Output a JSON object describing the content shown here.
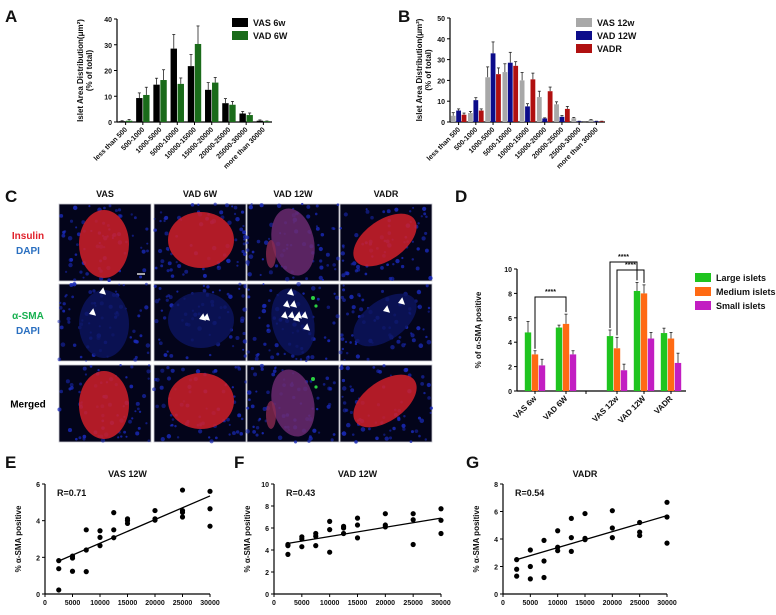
{
  "panel_letters": [
    "A",
    "B",
    "C",
    "D",
    "E",
    "F",
    "G"
  ],
  "chart_data": [
    {
      "id": "A",
      "type": "bar",
      "ylabel": "Islet Area Distribution(μm²)",
      "ylabel2": "(% of total)",
      "ylim": [
        0,
        40
      ],
      "yticks": [
        0,
        10,
        20,
        30,
        40
      ],
      "categories": [
        "less than 500",
        "500-1000",
        "1000-5000",
        "5000-10000",
        "10000-15000",
        "15000-20000",
        "20000-25000",
        "25000-30000",
        "more than 30000"
      ],
      "series": [
        {
          "name": "VAS 6w",
          "color": "#000000",
          "values": [
            0.3,
            9.3,
            14.5,
            28.5,
            21.7,
            12.5,
            7.3,
            3.3,
            0.5
          ],
          "errors": [
            0.2,
            2.0,
            2.5,
            5.5,
            4.5,
            2.8,
            1.8,
            0.8,
            0.3
          ]
        },
        {
          "name": "VAD 6W",
          "color": "#1a6b1a",
          "values": [
            0.5,
            10.5,
            16.3,
            14.8,
            30.3,
            15.3,
            6.7,
            2.7,
            0.3
          ],
          "errors": [
            0.5,
            3.0,
            4.0,
            2.3,
            7.0,
            2.0,
            1.3,
            0.8,
            0.1
          ]
        }
      ],
      "legend": "top-right"
    },
    {
      "id": "B",
      "type": "bar",
      "ylabel": "Islet Area Distribution(μm²)",
      "ylabel2": "(% of total)",
      "ylim": [
        0,
        50
      ],
      "yticks": [
        0,
        10,
        20,
        30,
        40,
        50
      ],
      "categories": [
        "less than 500",
        "500-1000",
        "1000-5000",
        "5000-10000",
        "10000-15000",
        "15000-20000",
        "20000-25000",
        "25000-30000",
        "more than 30000"
      ],
      "series": [
        {
          "name": "VAS 12w",
          "color": "#a8a8a8",
          "values": [
            3.0,
            4.3,
            21.5,
            24.0,
            20.0,
            12.0,
            8.5,
            1.8,
            1.0
          ],
          "errors": [
            1.5,
            0.8,
            5.0,
            4.0,
            3.8,
            2.8,
            1.2,
            0.4,
            0.2
          ]
        },
        {
          "name": "VAD 12W",
          "color": "#0c0c8a",
          "values": [
            5.5,
            10.5,
            33.0,
            28.5,
            7.5,
            1.7,
            2.5,
            0.3,
            0.3
          ],
          "errors": [
            0.8,
            1.2,
            5.5,
            5.0,
            1.3,
            0.3,
            0.6,
            0.1,
            0.1
          ]
        },
        {
          "name": "VADR",
          "color": "#b01010",
          "values": [
            3.5,
            5.5,
            23.0,
            27.0,
            20.5,
            14.8,
            6.3,
            0.0,
            0.3
          ],
          "errors": [
            0.8,
            0.8,
            3.0,
            2.0,
            3.0,
            2.0,
            1.2,
            0.0,
            0.1
          ]
        }
      ],
      "legend": "top-right"
    },
    {
      "id": "D",
      "type": "bar",
      "ylabel": "% of α-SMA positive",
      "ylim": [
        0,
        10
      ],
      "yticks": [
        0,
        2,
        4,
        6,
        8,
        10
      ],
      "categories": [
        "VAS 6w",
        "VAD 6W",
        "VAS 12w",
        "VAD 12W",
        "VADR"
      ],
      "series": [
        {
          "name": "Large islets",
          "color": "#1fc41f",
          "values": [
            4.8,
            5.2,
            4.5,
            8.2,
            4.75
          ],
          "errors": [
            0.9,
            0.2,
            0.5,
            0.7,
            0.4
          ]
        },
        {
          "name": "Medium islets",
          "color": "#ff6a13",
          "values": [
            3.0,
            5.5,
            3.5,
            8.0,
            4.3
          ],
          "errors": [
            0.3,
            0.8,
            0.9,
            0.7,
            0.5
          ]
        },
        {
          "name": "Small islets",
          "color": "#c21ec2",
          "values": [
            2.1,
            3.0,
            1.7,
            4.3,
            2.3
          ],
          "errors": [
            0.5,
            0.3,
            0.5,
            0.5,
            0.8
          ]
        }
      ],
      "significance": [
        {
          "from": [
            "VAS 6w",
            "Medium islets"
          ],
          "to": [
            "VAD 6W",
            "Medium islets"
          ],
          "label": "****"
        },
        {
          "from": [
            "VAS 12w",
            "Large islets"
          ],
          "to": [
            "VAD 12W",
            "Large islets"
          ],
          "label": "****"
        },
        {
          "from": [
            "VAS 12w",
            "Medium islets"
          ],
          "to": [
            "VAD 12W",
            "Medium islets"
          ],
          "label": "****"
        }
      ],
      "legend": "right"
    },
    {
      "id": "E",
      "type": "scatter",
      "title": "VAS 12W",
      "annotation": "R=0.71",
      "ylabel": "% α-SMA positive",
      "xlim": [
        0,
        30000
      ],
      "xticks": [
        0,
        5000,
        10000,
        15000,
        20000,
        25000,
        30000
      ],
      "ylim": [
        0,
        6
      ],
      "yticks": [
        0,
        2,
        4,
        6
      ],
      "points": [
        [
          2500,
          1.82
        ],
        [
          2500,
          1.38
        ],
        [
          2500,
          0.22
        ],
        [
          5000,
          2.07
        ],
        [
          5000,
          1.96
        ],
        [
          5000,
          1.24
        ],
        [
          7500,
          3.5
        ],
        [
          7500,
          2.4
        ],
        [
          7500,
          1.22
        ],
        [
          10000,
          3.45
        ],
        [
          10000,
          3.09
        ],
        [
          10000,
          2.64
        ],
        [
          12500,
          4.44
        ],
        [
          12500,
          3.5
        ],
        [
          12500,
          3.07
        ],
        [
          15000,
          4.1
        ],
        [
          15000,
          4.0
        ],
        [
          15000,
          3.85
        ],
        [
          20000,
          4.55
        ],
        [
          20000,
          4.1
        ],
        [
          20000,
          4.03
        ],
        [
          25000,
          5.67
        ],
        [
          25000,
          4.55
        ],
        [
          25000,
          4.45
        ],
        [
          25000,
          4.2
        ],
        [
          30000,
          5.6
        ],
        [
          30000,
          4.65
        ],
        [
          30000,
          3.7
        ]
      ],
      "fit": [
        [
          2500,
          1.8
        ],
        [
          30000,
          5.35
        ]
      ]
    },
    {
      "id": "F",
      "type": "scatter",
      "title": "VAD 12W",
      "annotation": "R=0.43",
      "ylabel": "% α-SMA positive",
      "xlim": [
        0,
        30000
      ],
      "xticks": [
        0,
        5000,
        10000,
        15000,
        20000,
        25000,
        30000
      ],
      "ylim": [
        0,
        10
      ],
      "yticks": [
        0,
        2,
        4,
        6,
        8,
        10
      ],
      "points": [
        [
          2500,
          4.5
        ],
        [
          2500,
          4.4
        ],
        [
          2500,
          3.6
        ],
        [
          5000,
          5.2
        ],
        [
          5000,
          5.0
        ],
        [
          5000,
          4.3
        ],
        [
          7500,
          5.5
        ],
        [
          7500,
          5.25
        ],
        [
          7500,
          4.4
        ],
        [
          10000,
          6.6
        ],
        [
          10000,
          5.85
        ],
        [
          10000,
          3.8
        ],
        [
          12500,
          6.15
        ],
        [
          12500,
          6.0
        ],
        [
          12500,
          5.5
        ],
        [
          15000,
          6.9
        ],
        [
          15000,
          6.27
        ],
        [
          15000,
          5.1
        ],
        [
          20000,
          7.3
        ],
        [
          20000,
          6.27
        ],
        [
          20000,
          6.1
        ],
        [
          25000,
          7.3
        ],
        [
          25000,
          6.75
        ],
        [
          25000,
          4.5
        ],
        [
          30000,
          7.75
        ],
        [
          30000,
          6.7
        ],
        [
          30000,
          5.5
        ]
      ],
      "fit": [
        [
          2500,
          4.6
        ],
        [
          30000,
          6.9
        ]
      ]
    },
    {
      "id": "G",
      "type": "scatter",
      "title": "VADR",
      "annotation": "R=0.54",
      "ylabel": "% α-SMA positive",
      "xlim": [
        0,
        30000
      ],
      "xticks": [
        0,
        5000,
        10000,
        15000,
        20000,
        25000,
        30000
      ],
      "ylim": [
        0,
        8
      ],
      "yticks": [
        0,
        2,
        4,
        6,
        8
      ],
      "points": [
        [
          2500,
          2.5
        ],
        [
          2500,
          1.8
        ],
        [
          2500,
          1.3
        ],
        [
          5000,
          3.2
        ],
        [
          5000,
          2.0
        ],
        [
          5000,
          1.1
        ],
        [
          7500,
          3.9
        ],
        [
          7500,
          2.4
        ],
        [
          7500,
          1.2
        ],
        [
          10000,
          4.6
        ],
        [
          10000,
          3.4
        ],
        [
          10000,
          3.15
        ],
        [
          12500,
          5.5
        ],
        [
          12500,
          4.1
        ],
        [
          12500,
          3.1
        ],
        [
          15000,
          5.85
        ],
        [
          15000,
          4.05
        ],
        [
          15000,
          3.95
        ],
        [
          20000,
          6.06
        ],
        [
          20000,
          4.8
        ],
        [
          20000,
          4.1
        ],
        [
          25000,
          5.2
        ],
        [
          25000,
          4.5
        ],
        [
          25000,
          4.25
        ],
        [
          30000,
          6.67
        ],
        [
          30000,
          5.6
        ],
        [
          30000,
          3.7
        ]
      ],
      "fit": [
        [
          2500,
          2.5
        ],
        [
          30000,
          5.7
        ]
      ]
    }
  ],
  "micrographs": {
    "columns": [
      "VAS",
      "VAD 6W",
      "VAD 12W",
      "VADR"
    ],
    "rows": [
      {
        "lines": [
          {
            "text": "Insulin",
            "color": "#e0202a"
          },
          {
            "text": "DAPI",
            "color": "#2a6fc0"
          }
        ]
      },
      {
        "lines": [
          {
            "text": "α-SMA",
            "color": "#18b050"
          },
          {
            "text": "DAPI",
            "color": "#2a6fc0"
          }
        ]
      },
      {
        "lines": [
          {
            "text": "Merged",
            "color": "#000000"
          }
        ]
      }
    ],
    "arrowhead_counts": [
      2,
      2,
      9,
      2
    ]
  }
}
